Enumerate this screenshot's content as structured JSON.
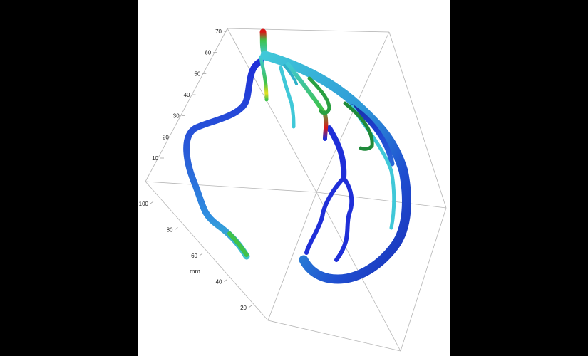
{
  "figure": {
    "unit_label": "mm",
    "z_axis_ticks": [
      "70",
      "60",
      "50",
      "40",
      "30",
      "20",
      "10"
    ],
    "depth_axis_ticks": [
      "100",
      "80",
      "60",
      "40",
      "20"
    ]
  },
  "colors": {
    "background": "#000000",
    "canvas": "#ffffff",
    "box_edges": "#b4b4b4",
    "low": "#1f2fd8",
    "mid_blue": "#2f79e0",
    "cyan": "#40c8d8",
    "green": "#3fc24a",
    "yellow": "#e8e020",
    "red": "#d81818"
  }
}
